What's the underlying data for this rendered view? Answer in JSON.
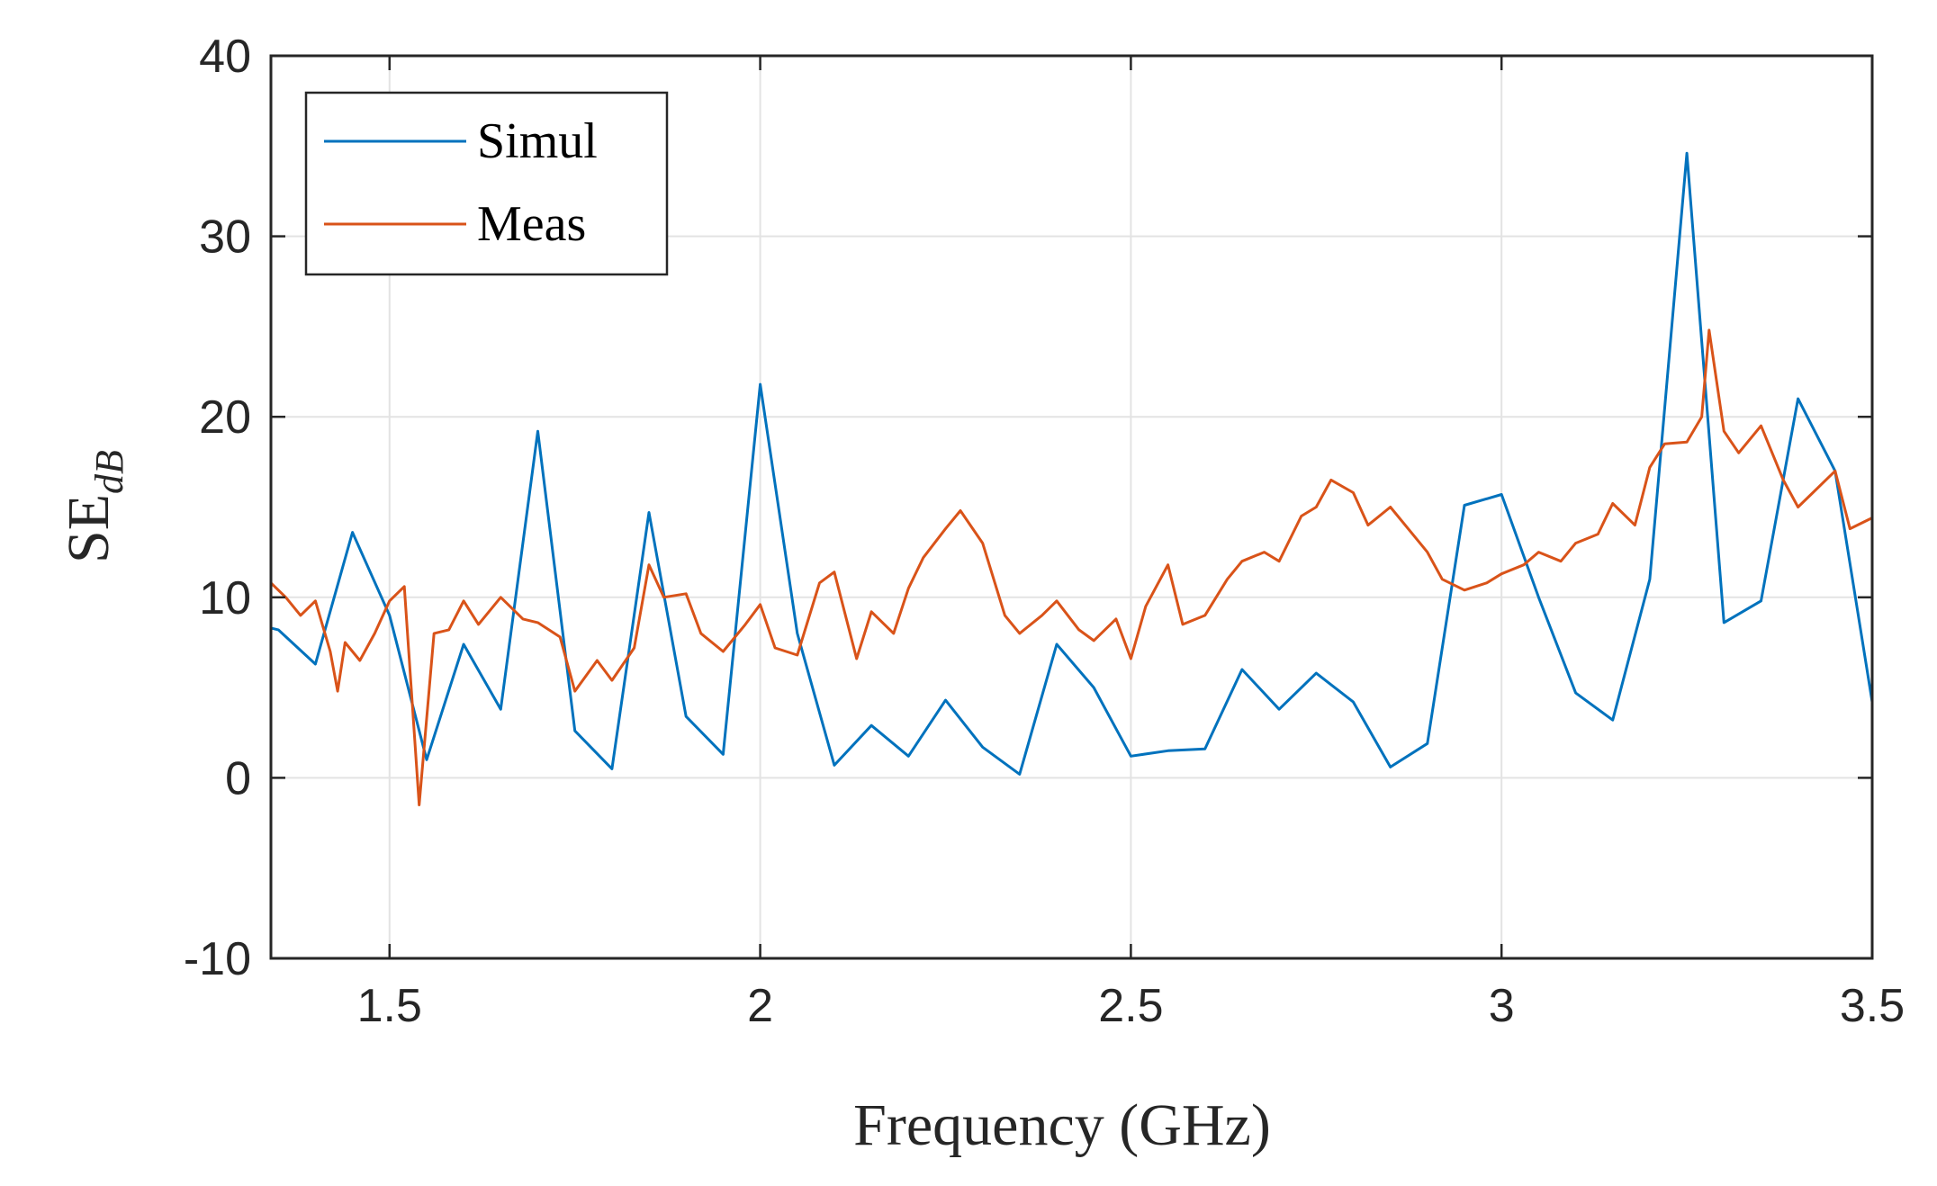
{
  "chart_data": {
    "type": "line",
    "title": "",
    "xlabel": "Frequency (GHz)",
    "ylabel": {
      "main": "SE",
      "subscript": "dB"
    },
    "xlim": [
      1.34,
      3.5
    ],
    "ylim": [
      -10,
      40
    ],
    "xticks": [
      1.5,
      2,
      2.5,
      3,
      3.5
    ],
    "xtick_labels": [
      "1.5",
      "2",
      "2.5",
      "3",
      "3.5"
    ],
    "yticks": [
      -10,
      0,
      10,
      20,
      30,
      40
    ],
    "ytick_labels": [
      "-10",
      "0",
      "10",
      "20",
      "30",
      "40"
    ],
    "grid": true,
    "legend": {
      "position": "top-left",
      "entries": [
        "Simul",
        "Meas"
      ]
    },
    "series": [
      {
        "name": "Simul",
        "color": "#0072BD",
        "x": [
          1.34,
          1.35,
          1.4,
          1.45,
          1.5,
          1.55,
          1.6,
          1.65,
          1.7,
          1.75,
          1.8,
          1.85,
          1.9,
          1.95,
          2.0,
          2.05,
          2.1,
          2.15,
          2.2,
          2.25,
          2.3,
          2.35,
          2.4,
          2.45,
          2.5,
          2.55,
          2.6,
          2.65,
          2.7,
          2.75,
          2.8,
          2.85,
          2.9,
          2.95,
          3.0,
          3.05,
          3.1,
          3.15,
          3.2,
          3.25,
          3.3,
          3.35,
          3.4,
          3.45,
          3.5
        ],
        "y": [
          8.3,
          8.2,
          6.3,
          13.6,
          9.0,
          1.0,
          7.4,
          3.8,
          19.2,
          2.6,
          0.5,
          14.7,
          3.4,
          1.3,
          21.8,
          8.0,
          0.7,
          2.9,
          1.2,
          4.3,
          1.7,
          0.2,
          7.4,
          5.0,
          1.2,
          1.5,
          1.6,
          6.0,
          3.8,
          5.8,
          4.2,
          0.6,
          1.9,
          15.1,
          15.7,
          10.0,
          4.7,
          3.2,
          11.0,
          34.6,
          8.6,
          9.8,
          21.0,
          17.0,
          4.2
        ]
      },
      {
        "name": "Meas",
        "color": "#D95319",
        "x": [
          1.34,
          1.36,
          1.38,
          1.4,
          1.42,
          1.43,
          1.44,
          1.46,
          1.48,
          1.5,
          1.52,
          1.54,
          1.56,
          1.58,
          1.6,
          1.62,
          1.65,
          1.68,
          1.7,
          1.73,
          1.75,
          1.78,
          1.8,
          1.83,
          1.85,
          1.87,
          1.9,
          1.92,
          1.95,
          1.98,
          2.0,
          2.02,
          2.05,
          2.08,
          2.1,
          2.13,
          2.15,
          2.18,
          2.2,
          2.22,
          2.25,
          2.27,
          2.3,
          2.33,
          2.35,
          2.38,
          2.4,
          2.43,
          2.45,
          2.48,
          2.5,
          2.52,
          2.55,
          2.57,
          2.6,
          2.63,
          2.65,
          2.68,
          2.7,
          2.73,
          2.75,
          2.77,
          2.8,
          2.82,
          2.85,
          2.88,
          2.9,
          2.92,
          2.95,
          2.98,
          3.0,
          3.03,
          3.05,
          3.08,
          3.1,
          3.13,
          3.15,
          3.18,
          3.2,
          3.22,
          3.25,
          3.27,
          3.28,
          3.3,
          3.32,
          3.35,
          3.38,
          3.4,
          3.42,
          3.45,
          3.47,
          3.5
        ],
        "y": [
          10.8,
          10.0,
          9.0,
          9.8,
          7.0,
          4.8,
          7.5,
          6.5,
          8.0,
          9.8,
          10.6,
          -1.5,
          8.0,
          8.2,
          9.8,
          8.5,
          10.0,
          8.8,
          8.6,
          7.8,
          4.8,
          6.5,
          5.4,
          7.2,
          11.8,
          10.0,
          10.2,
          8.0,
          7.0,
          8.5,
          9.6,
          7.2,
          6.8,
          10.8,
          11.4,
          6.6,
          9.2,
          8.0,
          10.5,
          12.2,
          13.8,
          14.8,
          13.0,
          9.0,
          8.0,
          9.0,
          9.8,
          8.2,
          7.6,
          8.8,
          6.6,
          9.5,
          11.8,
          8.5,
          9.0,
          11.0,
          12.0,
          12.5,
          12.0,
          14.5,
          15.0,
          16.5,
          15.8,
          14.0,
          15.0,
          13.5,
          12.5,
          11.0,
          10.4,
          10.8,
          11.3,
          11.8,
          12.5,
          12.0,
          13.0,
          13.5,
          15.2,
          14.0,
          17.2,
          18.5,
          18.6,
          20.0,
          24.8,
          19.2,
          18.0,
          19.5,
          16.5,
          15.0,
          15.8,
          17.0,
          13.8,
          14.4
        ]
      }
    ]
  }
}
